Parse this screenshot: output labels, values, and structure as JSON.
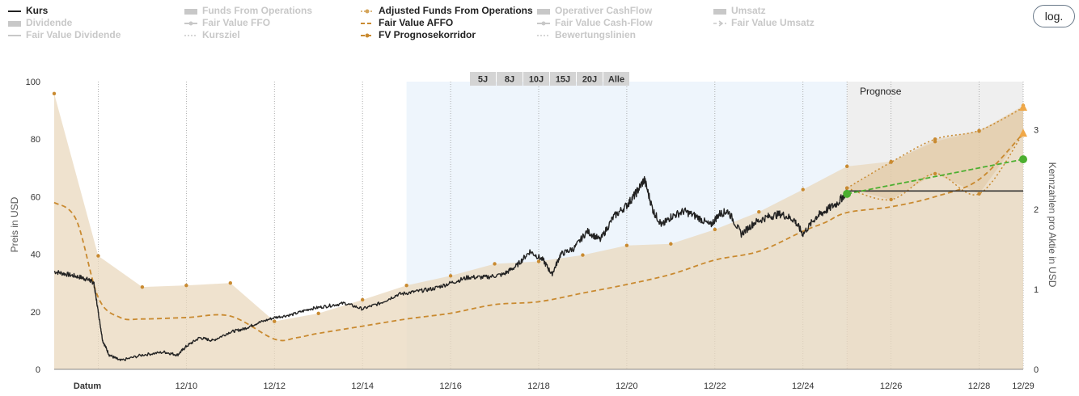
{
  "legend": [
    {
      "label": "Kurs",
      "active": true,
      "color": "#222222",
      "symbol": "line"
    },
    {
      "label": "Dividende",
      "active": false,
      "color": "#c8c8c8",
      "symbol": "area"
    },
    {
      "label": "Fair Value Dividende",
      "active": false,
      "color": "#c8c8c8",
      "symbol": "line"
    },
    {
      "label": "Funds From Operations",
      "active": false,
      "color": "#c8c8c8",
      "symbol": "area"
    },
    {
      "label": "Fair Value FFO",
      "active": false,
      "color": "#c8c8c8",
      "symbol": "line-dot"
    },
    {
      "label": "Kursziel",
      "active": false,
      "color": "#c8c8c8",
      "symbol": "dotted"
    },
    {
      "label": "Adjusted Funds From Operations",
      "active": true,
      "color": "#d4a45a",
      "symbol": "dot-dotted"
    },
    {
      "label": "Fair Value AFFO",
      "active": true,
      "color": "#c98a30",
      "symbol": "dashed"
    },
    {
      "label": "FV Prognosekorridor",
      "active": true,
      "color": "#c98a30",
      "symbol": "dashed-dot"
    },
    {
      "label": "Operativer CashFlow",
      "active": false,
      "color": "#c8c8c8",
      "symbol": "area"
    },
    {
      "label": "Fair Value Cash-Flow",
      "active": false,
      "color": "#c8c8c8",
      "symbol": "line-dot"
    },
    {
      "label": "Bewertungslinien",
      "active": false,
      "color": "#c8c8c8",
      "symbol": "dotted"
    },
    {
      "label": "Umsatz",
      "active": false,
      "color": "#c8c8c8",
      "symbol": "area"
    },
    {
      "label": "Fair Value Umsatz",
      "active": false,
      "color": "#c8c8c8",
      "symbol": "arrow"
    }
  ],
  "log_button": "log.",
  "zoom_buttons": [
    "5J",
    "8J",
    "10J",
    "15J",
    "20J",
    "Alle"
  ],
  "forecast_label": "Prognose",
  "chart_data": {
    "type": "line",
    "xlabel": "Datum",
    "ylabel_left": "Preis in USD",
    "ylabel_right": "Kennzahlen pro Aktie in USD",
    "x_range": [
      2008.0,
      2030.0
    ],
    "ylim_left": [
      0,
      100
    ],
    "ylim_right": [
      0,
      3.6
    ],
    "x_ticks": [
      "12/10",
      "12/12",
      "12/14",
      "12/16",
      "12/18",
      "12/20",
      "12/22",
      "12/24",
      "12/26",
      "12/28",
      "12/29"
    ],
    "y_ticks_left": [
      "0",
      "20",
      "40",
      "60",
      "80",
      "100"
    ],
    "y_ticks_right": [
      "0",
      "1",
      "2",
      "3"
    ],
    "highlight_range": [
      2016.0,
      2026.0
    ],
    "forecast_start": 2026.0,
    "colors": {
      "kurs": "#222222",
      "affo": "#ead8bd",
      "fv_affo": "#c98a30",
      "corridor": "#c98a30",
      "trend": "#4caf30",
      "highlight": "#eef5fc",
      "forecast_bg": "#efefef"
    },
    "series": [
      {
        "name": "Kurs",
        "axis": "left",
        "x": [
          2008.0,
          2008.3,
          2008.6,
          2008.8,
          2008.9,
          2009.0,
          2009.1,
          2009.25,
          2009.5,
          2010.0,
          2010.5,
          2010.8,
          2011.0,
          2011.3,
          2011.6,
          2012.0,
          2012.3,
          2012.6,
          2013.0,
          2013.4,
          2013.8,
          2014.2,
          2014.6,
          2015.0,
          2015.4,
          2015.8,
          2016.2,
          2016.6,
          2017.0,
          2017.4,
          2017.8,
          2018.2,
          2018.5,
          2018.8,
          2019.1,
          2019.3,
          2019.5,
          2019.8,
          2020.1,
          2020.4,
          2020.7,
          2021.0,
          2021.2,
          2021.4,
          2021.6,
          2021.8,
          2022.0,
          2022.3,
          2022.6,
          2022.9,
          2023.1,
          2023.3,
          2023.6,
          2023.9,
          2024.2,
          2024.5,
          2024.8,
          2025.0,
          2025.3,
          2025.5,
          2025.8,
          2026.0
        ],
        "values": [
          34,
          33,
          32,
          31,
          30,
          20,
          10,
          5,
          3,
          5,
          6,
          5,
          8,
          11,
          10,
          13,
          14,
          16,
          18,
          19,
          21,
          22,
          23,
          21,
          23,
          26,
          27,
          28,
          30,
          32,
          32,
          33,
          36,
          41,
          38,
          33,
          40,
          42,
          48,
          45,
          53,
          57,
          61,
          66,
          55,
          50,
          53,
          55,
          53,
          50,
          54,
          55,
          47,
          51,
          53,
          54,
          52,
          47,
          53,
          55,
          58,
          62
        ]
      },
      {
        "name": "Adjusted Funds From Operations",
        "axis": "right",
        "x": [
          2008.0,
          2009.0,
          2010.0,
          2011.0,
          2012.0,
          2013.0,
          2014.0,
          2015.0,
          2016.0,
          2017.0,
          2018.0,
          2019.0,
          2020.0,
          2021.0,
          2022.0,
          2023.0,
          2024.0,
          2025.0,
          2026.0,
          2027.0,
          2028.0,
          2029.0,
          2030.0
        ],
        "values": [
          3.45,
          1.42,
          1.03,
          1.05,
          1.08,
          0.6,
          0.7,
          0.87,
          1.05,
          1.17,
          1.32,
          1.35,
          1.43,
          1.55,
          1.57,
          1.75,
          1.97,
          2.25,
          2.54,
          2.6,
          2.85,
          2.98,
          3.3
        ]
      },
      {
        "name": "Fair Value AFFO",
        "axis": "left",
        "x": [
          2008.0,
          2008.5,
          2009.0,
          2009.5,
          2010.0,
          2011.0,
          2012.0,
          2013.0,
          2013.5,
          2014.0,
          2015.0,
          2016.0,
          2017.0,
          2018.0,
          2019.0,
          2020.0,
          2021.0,
          2022.0,
          2023.0,
          2024.0,
          2025.0,
          2025.5,
          2026.0,
          2027.0,
          2028.0,
          2029.0,
          2030.0
        ],
        "values": [
          58,
          52,
          25,
          18,
          17.5,
          18,
          18.5,
          10.5,
          11,
          12.5,
          15,
          17.5,
          19.5,
          22.5,
          23.5,
          26.5,
          29.5,
          33,
          38,
          41,
          48,
          51,
          54.5,
          56.5,
          60,
          66,
          82
        ]
      },
      {
        "name": "FV Prognosekorridor",
        "axis": "left",
        "x": [
          2026.0,
          2027.0,
          2028.0,
          2029.0,
          2030.0
        ],
        "values": [
          63,
          72,
          80,
          83,
          91
        ]
      },
      {
        "name": "FV Prognosekorridor",
        "axis": "left",
        "x": [
          2026.0,
          2027.0,
          2028.0,
          2029.0,
          2030.0
        ],
        "values": [
          63,
          59,
          68,
          61,
          82
        ]
      },
      {
        "name": "",
        "axis": "left",
        "x": [
          2026.0,
          2030.0
        ],
        "values": [
          61,
          73
        ]
      }
    ]
  }
}
